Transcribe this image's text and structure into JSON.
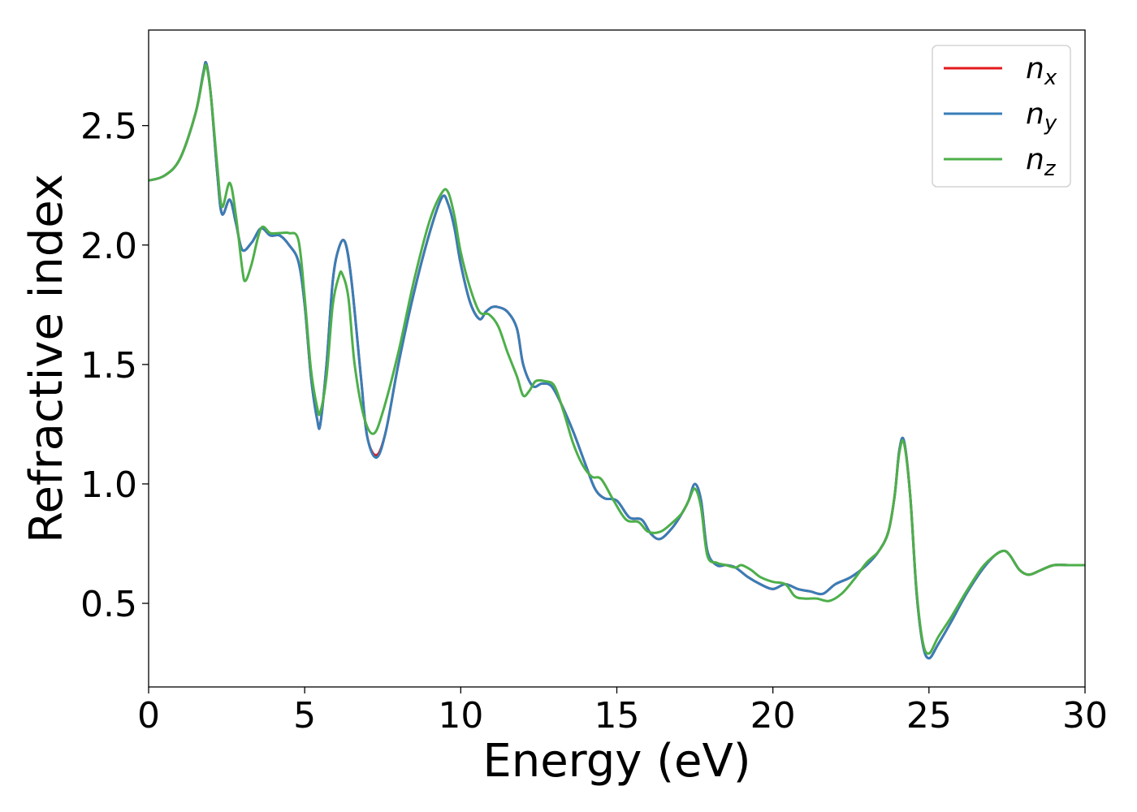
{
  "chart_data": {
    "type": "line",
    "title": "",
    "xlabel": "Energy (eV)",
    "ylabel": "Refractive index",
    "xlim": [
      0,
      30
    ],
    "ylim": [
      0.15,
      2.9
    ],
    "xticks": [
      0,
      5,
      10,
      15,
      20,
      25,
      30
    ],
    "xtick_labels": [
      "0",
      "5",
      "10",
      "15",
      "20",
      "25",
      "30"
    ],
    "yticks": [
      0.5,
      1.0,
      1.5,
      2.0,
      2.5
    ],
    "ytick_labels": [
      "0.5",
      "1.0",
      "1.5",
      "2.0",
      "2.5"
    ],
    "grid": false,
    "legend_position": "top-right",
    "series": [
      {
        "name": "n_x",
        "legend_base": "n",
        "legend_sub": "x",
        "color": "#e41a1c",
        "x": [
          0,
          0.5,
          1.0,
          1.5,
          1.75,
          1.85,
          2.0,
          2.2,
          2.35,
          2.6,
          2.8,
          3.0,
          3.3,
          3.6,
          3.9,
          4.2,
          4.5,
          4.8,
          5.0,
          5.2,
          5.4,
          5.5,
          5.7,
          5.9,
          6.1,
          6.3,
          6.5,
          6.8,
          7.0,
          7.3,
          7.6,
          8.0,
          8.5,
          9.0,
          9.4,
          9.6,
          9.8,
          10.0,
          10.3,
          10.6,
          10.8,
          11.0,
          11.2,
          11.5,
          11.8,
          12.0,
          12.3,
          12.6,
          12.9,
          13.2,
          13.6,
          14.0,
          14.3,
          14.6,
          15.0,
          15.4,
          15.8,
          16.1,
          16.4,
          16.8,
          17.1,
          17.3,
          17.5,
          17.7,
          17.9,
          18.2,
          18.5,
          18.8,
          19.2,
          19.6,
          20.0,
          20.4,
          20.8,
          21.2,
          21.6,
          22.0,
          22.5,
          23.0,
          23.4,
          23.7,
          23.9,
          24.05,
          24.2,
          24.4,
          24.6,
          24.8,
          25.0,
          25.3,
          25.7,
          26.2,
          26.7,
          27.1,
          27.4,
          27.6,
          27.9,
          28.2,
          28.6,
          29.0,
          29.5,
          30.0
        ],
        "y": [
          2.27,
          2.29,
          2.36,
          2.55,
          2.72,
          2.76,
          2.62,
          2.3,
          2.13,
          2.19,
          2.09,
          1.98,
          2.01,
          2.07,
          2.04,
          2.04,
          2.0,
          1.93,
          1.75,
          1.45,
          1.27,
          1.25,
          1.5,
          1.85,
          1.99,
          2.01,
          1.85,
          1.45,
          1.2,
          1.12,
          1.22,
          1.5,
          1.8,
          2.05,
          2.2,
          2.17,
          2.07,
          1.92,
          1.76,
          1.69,
          1.72,
          1.74,
          1.74,
          1.72,
          1.65,
          1.5,
          1.41,
          1.42,
          1.41,
          1.34,
          1.22,
          1.08,
          0.98,
          0.94,
          0.93,
          0.86,
          0.85,
          0.79,
          0.77,
          0.82,
          0.88,
          0.93,
          1.0,
          0.93,
          0.72,
          0.66,
          0.66,
          0.65,
          0.61,
          0.58,
          0.56,
          0.58,
          0.56,
          0.55,
          0.54,
          0.58,
          0.61,
          0.66,
          0.72,
          0.8,
          0.95,
          1.14,
          1.18,
          0.95,
          0.55,
          0.33,
          0.27,
          0.33,
          0.42,
          0.54,
          0.64,
          0.7,
          0.72,
          0.7,
          0.64,
          0.62,
          0.64,
          0.66,
          0.66,
          0.66
        ]
      },
      {
        "name": "n_y",
        "legend_base": "n",
        "legend_sub": "y",
        "color": "#377eb8",
        "x": [
          0,
          0.5,
          1.0,
          1.5,
          1.75,
          1.85,
          2.0,
          2.2,
          2.35,
          2.6,
          2.8,
          3.0,
          3.3,
          3.6,
          3.9,
          4.2,
          4.5,
          4.8,
          5.0,
          5.2,
          5.4,
          5.5,
          5.7,
          5.9,
          6.1,
          6.3,
          6.5,
          6.8,
          7.0,
          7.3,
          7.6,
          8.0,
          8.5,
          9.0,
          9.4,
          9.6,
          9.8,
          10.0,
          10.3,
          10.6,
          10.8,
          11.0,
          11.2,
          11.5,
          11.8,
          12.0,
          12.3,
          12.6,
          12.9,
          13.2,
          13.6,
          14.0,
          14.3,
          14.6,
          15.0,
          15.4,
          15.8,
          16.1,
          16.4,
          16.8,
          17.1,
          17.3,
          17.5,
          17.7,
          17.9,
          18.2,
          18.5,
          18.8,
          19.2,
          19.6,
          20.0,
          20.4,
          20.8,
          21.2,
          21.6,
          22.0,
          22.5,
          23.0,
          23.4,
          23.7,
          23.9,
          24.05,
          24.2,
          24.4,
          24.6,
          24.8,
          25.0,
          25.3,
          25.7,
          26.2,
          26.7,
          27.1,
          27.4,
          27.6,
          27.9,
          28.2,
          28.6,
          29.0,
          29.5,
          30.0
        ],
        "y": [
          2.27,
          2.29,
          2.36,
          2.55,
          2.72,
          2.76,
          2.62,
          2.3,
          2.13,
          2.19,
          2.09,
          1.98,
          2.01,
          2.07,
          2.04,
          2.04,
          2.0,
          1.93,
          1.75,
          1.45,
          1.27,
          1.25,
          1.5,
          1.85,
          1.99,
          2.01,
          1.85,
          1.45,
          1.2,
          1.11,
          1.22,
          1.5,
          1.8,
          2.05,
          2.2,
          2.17,
          2.07,
          1.92,
          1.76,
          1.69,
          1.72,
          1.74,
          1.74,
          1.72,
          1.65,
          1.5,
          1.41,
          1.42,
          1.41,
          1.34,
          1.22,
          1.08,
          0.98,
          0.94,
          0.93,
          0.86,
          0.85,
          0.79,
          0.77,
          0.82,
          0.88,
          0.93,
          1.0,
          0.93,
          0.72,
          0.66,
          0.66,
          0.65,
          0.61,
          0.58,
          0.56,
          0.58,
          0.56,
          0.55,
          0.54,
          0.58,
          0.61,
          0.66,
          0.72,
          0.8,
          0.95,
          1.14,
          1.18,
          0.95,
          0.55,
          0.33,
          0.27,
          0.33,
          0.42,
          0.54,
          0.64,
          0.7,
          0.72,
          0.7,
          0.64,
          0.62,
          0.64,
          0.66,
          0.66,
          0.66
        ]
      },
      {
        "name": "n_z",
        "legend_base": "n",
        "legend_sub": "z",
        "color": "#4daf4a",
        "x": [
          0,
          0.5,
          1.0,
          1.5,
          1.75,
          1.85,
          2.0,
          2.2,
          2.35,
          2.6,
          2.8,
          3.0,
          3.1,
          3.3,
          3.6,
          3.9,
          4.2,
          4.5,
          4.8,
          5.0,
          5.2,
          5.4,
          5.5,
          5.7,
          5.9,
          6.1,
          6.2,
          6.4,
          6.6,
          6.9,
          7.2,
          7.5,
          8.0,
          8.5,
          9.0,
          9.4,
          9.6,
          9.8,
          10.0,
          10.3,
          10.6,
          10.9,
          11.2,
          11.5,
          11.8,
          12.0,
          12.2,
          12.4,
          12.7,
          13.0,
          13.3,
          13.6,
          13.9,
          14.2,
          14.5,
          14.9,
          15.3,
          15.7,
          16.0,
          16.4,
          16.8,
          17.1,
          17.3,
          17.5,
          17.7,
          17.9,
          18.2,
          18.5,
          18.8,
          19.0,
          19.3,
          19.6,
          20.0,
          20.4,
          20.7,
          21.0,
          21.4,
          21.8,
          22.2,
          22.6,
          23.0,
          23.4,
          23.7,
          23.9,
          24.05,
          24.2,
          24.4,
          24.6,
          24.8,
          25.0,
          25.3,
          25.7,
          26.2,
          26.7,
          27.1,
          27.4,
          27.6,
          27.9,
          28.2,
          28.6,
          29.0,
          29.5,
          30.0
        ],
        "y": [
          2.27,
          2.29,
          2.36,
          2.55,
          2.71,
          2.75,
          2.62,
          2.33,
          2.16,
          2.26,
          2.12,
          1.9,
          1.85,
          1.92,
          2.07,
          2.05,
          2.05,
          2.05,
          2.02,
          1.78,
          1.48,
          1.32,
          1.3,
          1.45,
          1.75,
          1.87,
          1.88,
          1.78,
          1.5,
          1.28,
          1.21,
          1.3,
          1.55,
          1.85,
          2.1,
          2.22,
          2.22,
          2.12,
          1.97,
          1.82,
          1.72,
          1.71,
          1.66,
          1.55,
          1.45,
          1.37,
          1.39,
          1.43,
          1.43,
          1.41,
          1.3,
          1.17,
          1.08,
          1.03,
          1.02,
          0.93,
          0.85,
          0.84,
          0.8,
          0.8,
          0.84,
          0.88,
          0.93,
          0.98,
          0.9,
          0.7,
          0.67,
          0.66,
          0.65,
          0.66,
          0.64,
          0.61,
          0.59,
          0.58,
          0.53,
          0.52,
          0.52,
          0.51,
          0.54,
          0.6,
          0.67,
          0.72,
          0.8,
          0.95,
          1.13,
          1.17,
          0.95,
          0.56,
          0.34,
          0.29,
          0.36,
          0.44,
          0.55,
          0.65,
          0.7,
          0.72,
          0.7,
          0.64,
          0.62,
          0.64,
          0.66,
          0.66,
          0.66
        ]
      }
    ]
  }
}
